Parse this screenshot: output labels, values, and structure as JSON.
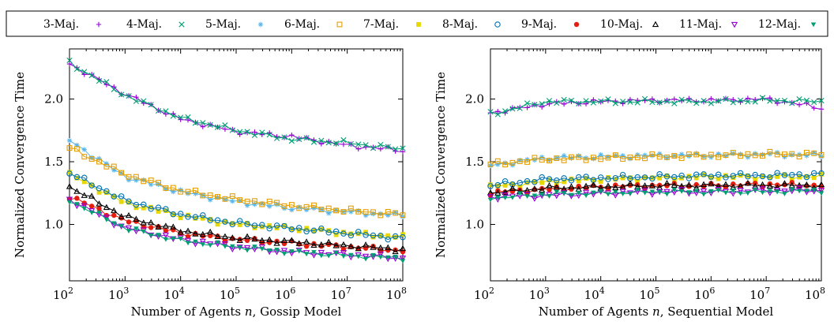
{
  "legend": {
    "entries": [
      "3-Maj.",
      "4-Maj.",
      "5-Maj.",
      "6-Maj.",
      "7-Maj.",
      "8-Maj.",
      "9-Maj.",
      "10-Maj.",
      "11-Maj.",
      "12-Maj."
    ],
    "colors": [
      "#9400d3",
      "#009e73",
      "#56b4e9",
      "#e69f00",
      "#e6d800",
      "#0072b2",
      "#e51e10",
      "#000000",
      "#9400d3",
      "#009e73"
    ],
    "markers": [
      "plus",
      "cross",
      "star",
      "open-square",
      "filled-square",
      "open-circle",
      "filled-circle",
      "open-triangle",
      "open-inv-triangle",
      "filled-inv-triangle"
    ],
    "placement": "top"
  },
  "chart_data": [
    {
      "type": "line",
      "title": "",
      "xlabel": "Number of Agents n, Gossip Model",
      "xlabel_prefix": "Number of Agents",
      "xlabel_var": "n",
      "xlabel_suffix": ", Gossip Model",
      "ylabel": "Normalized Convergence Time",
      "x_scale": "log",
      "x_ticks": [
        100,
        1000,
        10000,
        100000,
        1000000,
        10000000,
        100000000
      ],
      "x_tick_labels": [
        {
          "base": "10",
          "exp": "2"
        },
        {
          "base": "10",
          "exp": "3"
        },
        {
          "base": "10",
          "exp": "4"
        },
        {
          "base": "10",
          "exp": "5"
        },
        {
          "base": "10",
          "exp": "6"
        },
        {
          "base": "10",
          "exp": "7"
        },
        {
          "base": "10",
          "exp": "8"
        }
      ],
      "xlim": [
        100,
        100000000
      ],
      "ylim": [
        0.55,
        2.4
      ],
      "y_ticks": [
        1.0,
        1.5,
        2.0
      ],
      "y_tick_labels": [
        "1.0",
        "1.5",
        "2.0"
      ],
      "grid": false,
      "x": [
        100,
        1000,
        10000,
        100000,
        1000000,
        10000000,
        100000000
      ],
      "series": [
        {
          "values": [
            2.28,
            2.04,
            1.84,
            1.74,
            1.7,
            1.63,
            1.59
          ]
        },
        {
          "values": [
            2.29,
            2.03,
            1.85,
            1.75,
            1.68,
            1.65,
            1.6
          ]
        },
        {
          "values": [
            1.67,
            1.38,
            1.26,
            1.18,
            1.13,
            1.1,
            1.07
          ]
        },
        {
          "values": [
            1.61,
            1.4,
            1.27,
            1.2,
            1.15,
            1.11,
            1.08
          ]
        },
        {
          "values": [
            1.4,
            1.17,
            1.07,
            1.0,
            0.97,
            0.93,
            0.9
          ]
        },
        {
          "values": [
            1.41,
            1.19,
            1.08,
            1.01,
            0.97,
            0.93,
            0.89
          ]
        },
        {
          "values": [
            1.22,
            1.03,
            0.93,
            0.88,
            0.85,
            0.82,
            0.79
          ]
        },
        {
          "values": [
            1.3,
            1.06,
            0.95,
            0.89,
            0.86,
            0.83,
            0.8
          ]
        },
        {
          "values": [
            1.2,
            0.97,
            0.88,
            0.82,
            0.78,
            0.76,
            0.73
          ]
        },
        {
          "values": [
            1.19,
            0.97,
            0.87,
            0.82,
            0.78,
            0.75,
            0.73
          ]
        }
      ]
    },
    {
      "type": "line",
      "title": "",
      "xlabel": "Number of Agents n, Sequential Model",
      "xlabel_prefix": "Number of Agents",
      "xlabel_var": "n",
      "xlabel_suffix": ", Sequential Model",
      "ylabel": "Normalized Convergence Time",
      "x_scale": "log",
      "x_ticks": [
        100,
        1000,
        10000,
        100000,
        1000000,
        10000000,
        100000000
      ],
      "x_tick_labels": [
        {
          "base": "10",
          "exp": "2"
        },
        {
          "base": "10",
          "exp": "3"
        },
        {
          "base": "10",
          "exp": "4"
        },
        {
          "base": "10",
          "exp": "5"
        },
        {
          "base": "10",
          "exp": "6"
        },
        {
          "base": "10",
          "exp": "7"
        },
        {
          "base": "10",
          "exp": "8"
        }
      ],
      "xlim": [
        100,
        100000000
      ],
      "ylim": [
        0.55,
        2.4
      ],
      "y_ticks": [
        1.0,
        1.5,
        2.0
      ],
      "y_tick_labels": [
        "1.0",
        "1.5",
        "2.0"
      ],
      "grid": false,
      "x": [
        100,
        1000,
        10000,
        100000,
        1000000,
        10000000,
        100000000
      ],
      "series": [
        {
          "values": [
            1.89,
            1.96,
            1.98,
            1.99,
            1.99,
            2.0,
            1.93
          ]
        },
        {
          "values": [
            1.88,
            1.98,
            1.98,
            1.98,
            1.98,
            1.99,
            1.98
          ]
        },
        {
          "values": [
            1.47,
            1.53,
            1.54,
            1.55,
            1.55,
            1.56,
            1.55
          ]
        },
        {
          "values": [
            1.48,
            1.52,
            1.53,
            1.54,
            1.55,
            1.56,
            1.56
          ]
        },
        {
          "values": [
            1.3,
            1.34,
            1.36,
            1.37,
            1.38,
            1.38,
            1.38
          ]
        },
        {
          "values": [
            1.31,
            1.36,
            1.37,
            1.38,
            1.39,
            1.39,
            1.4
          ]
        },
        {
          "values": [
            1.25,
            1.28,
            1.3,
            1.31,
            1.31,
            1.32,
            1.31
          ]
        },
        {
          "values": [
            1.25,
            1.29,
            1.3,
            1.31,
            1.31,
            1.31,
            1.31
          ]
        },
        {
          "values": [
            1.22,
            1.23,
            1.25,
            1.26,
            1.26,
            1.27,
            1.27
          ]
        },
        {
          "values": [
            1.21,
            1.24,
            1.25,
            1.26,
            1.26,
            1.26,
            1.27
          ]
        }
      ]
    }
  ]
}
